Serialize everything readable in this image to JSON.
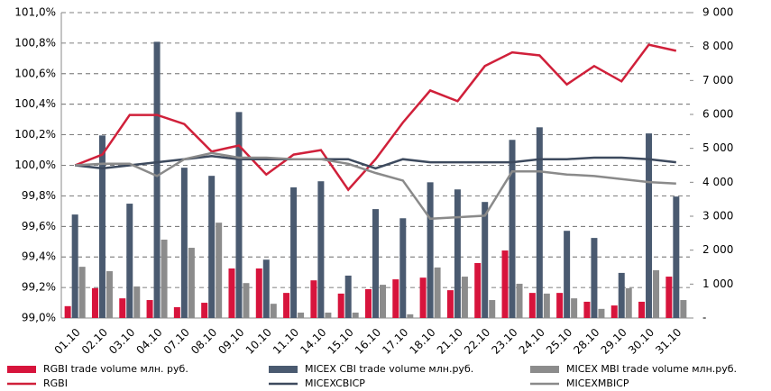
{
  "chart_data": {
    "type": "combo",
    "categories": [
      "01.10",
      "02.10",
      "03.10",
      "04.10",
      "07.10",
      "08.10",
      "09.10",
      "10.10",
      "11.10",
      "14.10",
      "15.10",
      "16.10",
      "17.10",
      "18.10",
      "21.10",
      "22.10",
      "23.10",
      "24.10",
      "25.10",
      "28.10",
      "29.10",
      "30.10",
      "31.10"
    ],
    "series": [
      {
        "name": "RGBI trade volume млн. руб.",
        "type": "bar",
        "axis": "y2",
        "color": "#d7143c",
        "values": [
          350,
          880,
          580,
          530,
          320,
          450,
          1460,
          1460,
          740,
          1110,
          720,
          850,
          1140,
          1190,
          820,
          1620,
          1990,
          740,
          740,
          480,
          370,
          480,
          1220
        ]
      },
      {
        "name": "MICEX CBI trade volume млн.руб.",
        "type": "bar",
        "axis": "y2",
        "color": "#4a5a70",
        "values": [
          3050,
          5380,
          3370,
          8140,
          4430,
          4190,
          6070,
          1720,
          3850,
          4030,
          1250,
          3210,
          2940,
          4000,
          3790,
          3420,
          5250,
          5620,
          2570,
          2360,
          1330,
          5440,
          3580
        ]
      },
      {
        "name": "MICEX MBI trade volume млн.руб.",
        "type": "bar",
        "axis": "y2",
        "color": "#8c8c8c",
        "values": [
          1510,
          1380,
          930,
          2310,
          2070,
          2810,
          1030,
          420,
          160,
          160,
          160,
          980,
          110,
          1490,
          1220,
          530,
          1010,
          720,
          580,
          270,
          880,
          1410,
          530
        ]
      },
      {
        "name": "RGBI",
        "type": "line",
        "color": "#d0203a",
        "values": [
          100.0,
          100.07,
          100.33,
          100.33,
          100.27,
          100.09,
          100.13,
          99.94,
          100.07,
          100.1,
          99.84,
          100.04,
          100.28,
          100.49,
          100.42,
          100.65,
          100.74,
          100.72,
          100.53,
          100.65,
          100.55,
          100.79,
          100.75
        ]
      },
      {
        "name": "MICEXCBICP",
        "type": "line",
        "color": "#3d4a5e",
        "values": [
          100.0,
          99.98,
          100.0,
          100.02,
          100.04,
          100.06,
          100.04,
          100.04,
          100.04,
          100.04,
          100.04,
          99.98,
          100.04,
          100.02,
          100.02,
          100.02,
          100.02,
          100.04,
          100.04,
          100.05,
          100.05,
          100.04,
          100.02
        ]
      },
      {
        "name": "MICEXMBICP",
        "type": "line",
        "color": "#8a8a8a",
        "values": [
          100.0,
          100.01,
          100.01,
          99.93,
          100.04,
          100.08,
          100.05,
          100.05,
          100.04,
          100.04,
          100.01,
          99.95,
          99.9,
          99.65,
          99.66,
          99.67,
          99.96,
          99.96,
          99.94,
          99.93,
          99.91,
          99.89,
          99.88
        ]
      }
    ],
    "ylim": [
      99.0,
      101.0
    ],
    "yticks": [
      {
        "value": 99.0,
        "label": "99,0%"
      },
      {
        "value": 99.2,
        "label": "99,2%"
      },
      {
        "value": 99.4,
        "label": "99,4%"
      },
      {
        "value": 99.6,
        "label": "99,6%"
      },
      {
        "value": 99.8,
        "label": "99,8%"
      },
      {
        "value": 100.0,
        "label": "100,0%"
      },
      {
        "value": 100.2,
        "label": "100,2%"
      },
      {
        "value": 100.4,
        "label": "100,4%"
      },
      {
        "value": 100.6,
        "label": "100,6%"
      },
      {
        "value": 100.8,
        "label": "100,8%"
      },
      {
        "value": 101.0,
        "label": "101,0%"
      }
    ],
    "y2lim": [
      0,
      9000
    ],
    "y2ticks": [
      {
        "value": 0,
        "label": "-"
      },
      {
        "value": 1000,
        "label": "1 000"
      },
      {
        "value": 2000,
        "label": "2 000"
      },
      {
        "value": 3000,
        "label": "3 000"
      },
      {
        "value": 4000,
        "label": "4 000"
      },
      {
        "value": 5000,
        "label": "5 000"
      },
      {
        "value": 6000,
        "label": "6 000"
      },
      {
        "value": 7000,
        "label": "7 000"
      },
      {
        "value": 8000,
        "label": "8 000"
      },
      {
        "value": 9000,
        "label": "9 000"
      }
    ],
    "grid": true
  }
}
